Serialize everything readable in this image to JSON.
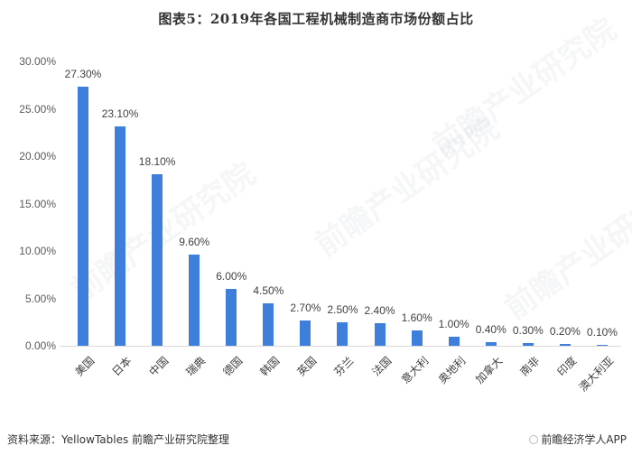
{
  "title": "图表5：2019年各国工程机械制造商市场份额占比",
  "footer": {
    "source": "资料来源：YellowTables 前瞻产业研究院整理",
    "brand": "前瞻经济学人APP"
  },
  "watermark": "前瞻产业研究院",
  "colors": {
    "bar": "#3f7fdc",
    "axis": "#d9d9d9",
    "text": "#404040"
  },
  "chart_data": {
    "type": "bar",
    "title": "图表5：2019年各国工程机械制造商市场份额占比",
    "xlabel": "",
    "ylabel": "",
    "ylim": [
      0,
      30
    ],
    "yticks": [
      "0.00%",
      "5.00%",
      "10.00%",
      "15.00%",
      "20.00%",
      "25.00%",
      "30.00%"
    ],
    "grid": false,
    "legend": null,
    "categories": [
      "美国",
      "日本",
      "中国",
      "瑞典",
      "德国",
      "韩国",
      "英国",
      "芬兰",
      "法国",
      "意大利",
      "奥地利",
      "加拿大",
      "南非",
      "印度",
      "澳大利亚"
    ],
    "values": [
      27.3,
      23.1,
      18.1,
      9.6,
      6.0,
      4.5,
      2.7,
      2.5,
      2.4,
      1.6,
      1.0,
      0.4,
      0.3,
      0.2,
      0.1
    ],
    "labels": [
      "27.30%",
      "23.10%",
      "18.10%",
      "9.60%",
      "6.00%",
      "4.50%",
      "2.70%",
      "2.50%",
      "2.40%",
      "1.60%",
      "1.00%",
      "0.40%",
      "0.30%",
      "0.20%",
      "0.10%"
    ]
  }
}
